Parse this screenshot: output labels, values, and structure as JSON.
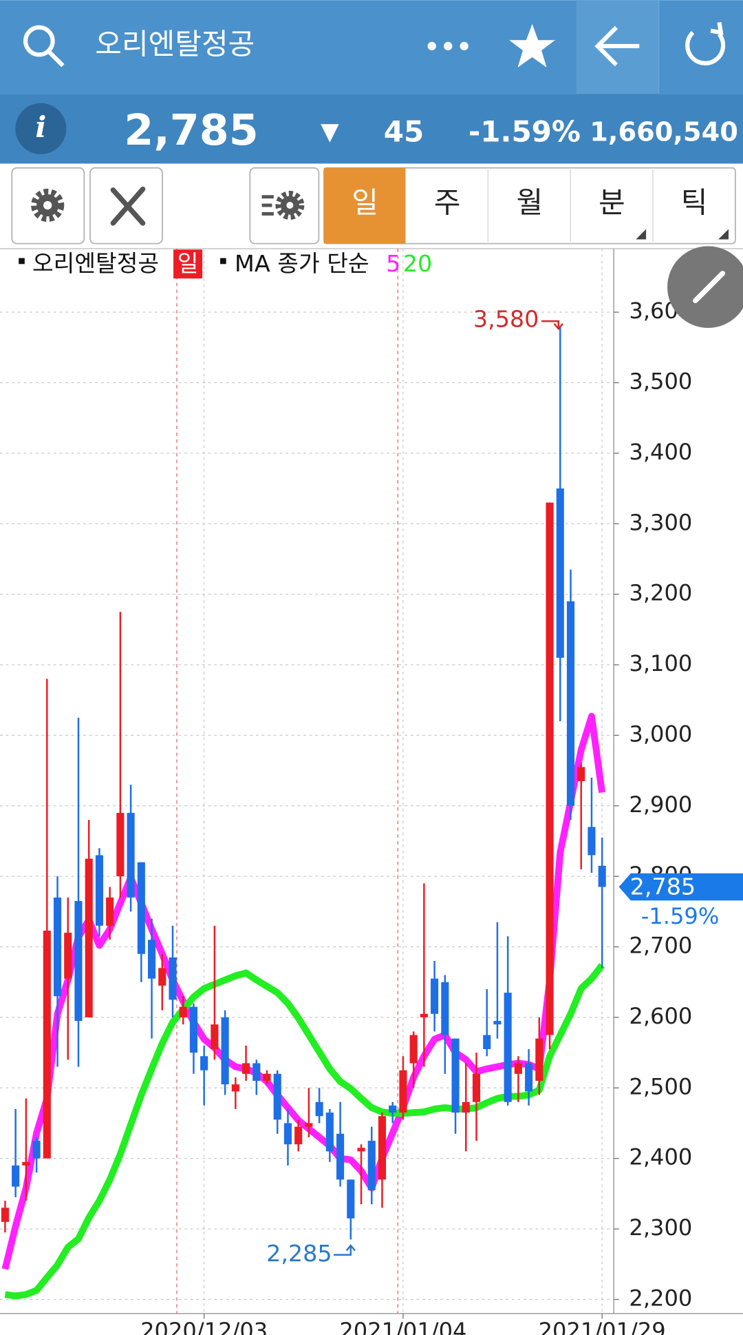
{
  "header": {
    "title": "오리엔탈정공"
  },
  "quote": {
    "info_icon": "i",
    "price": "2,785",
    "direction": "▼",
    "change": "45",
    "change_pct": "-1.59%",
    "volume": "1,660,540"
  },
  "tabs": [
    "일",
    "주",
    "월",
    "분",
    "틱"
  ],
  "chart_data": {
    "type": "candlestick",
    "legend": {
      "name": "오리엔탈정공",
      "period": "일",
      "ma_label": "MA 종가 단순"
    },
    "categories": [
      null,
      null,
      null,
      null,
      null,
      null,
      null,
      null,
      null,
      null,
      null,
      null,
      null,
      null,
      null,
      null,
      null,
      null,
      null,
      "2020/12/03",
      null,
      null,
      null,
      null,
      null,
      null,
      null,
      null,
      null,
      null,
      null,
      null,
      null,
      null,
      null,
      null,
      null,
      null,
      "2021/01/04",
      null,
      null,
      null,
      null,
      null,
      null,
      null,
      null,
      null,
      null,
      null,
      null,
      null,
      null,
      null,
      null,
      null,
      null,
      "2021/01/29"
    ],
    "open": [
      2310,
      2390,
      2390,
      2425,
      2400,
      2770,
      2655,
      2765,
      2600,
      2830,
      2730,
      2800,
      2890,
      2820,
      2710,
      2645,
      2685,
      2600,
      2615,
      2545,
      2555,
      2600,
      2495,
      2520,
      2535,
      2510,
      2520,
      2450,
      2420,
      2445,
      2480,
      2465,
      2435,
      2370,
      2410,
      2425,
      2370,
      2475,
      2465,
      2535,
      2600,
      2655,
      2650,
      2570,
      2465,
      2480,
      2575,
      2595,
      2635,
      2520,
      2535,
      2510,
      2575,
      3350,
      3190,
      2935,
      2870,
      2815
    ],
    "high": [
      2340,
      2470,
      2485,
      2430,
      3080,
      2800,
      2770,
      3025,
      2880,
      2840,
      2785,
      3175,
      2930,
      2820,
      2740,
      2690,
      2730,
      2630,
      2620,
      2560,
      2730,
      2610,
      2515,
      2560,
      2540,
      2525,
      2525,
      2470,
      2455,
      2500,
      2500,
      2470,
      2480,
      2370,
      2420,
      2445,
      2465,
      2480,
      2545,
      2580,
      2790,
      2680,
      2660,
      2570,
      2535,
      2550,
      2640,
      2735,
      2715,
      2545,
      2555,
      2600,
      3330,
      3580,
      3235,
      2960,
      2940,
      2855
    ],
    "low": [
      2295,
      2345,
      2340,
      2380,
      2400,
      2530,
      2540,
      2530,
      2600,
      2715,
      2710,
      2770,
      2750,
      2650,
      2570,
      2610,
      2600,
      2590,
      2520,
      2475,
      2540,
      2490,
      2470,
      2510,
      2490,
      2505,
      2435,
      2390,
      2410,
      2430,
      2450,
      2395,
      2360,
      2285,
      2335,
      2335,
      2330,
      2450,
      2455,
      2500,
      2530,
      2580,
      2520,
      2435,
      2410,
      2425,
      2545,
      2570,
      2475,
      2480,
      2475,
      2490,
      2555,
      3020,
      2880,
      2810,
      2805,
      2670
    ],
    "close": [
      2330,
      2360,
      2395,
      2400,
      2723,
      2630,
      2720,
      2595,
      2825,
      2730,
      2770,
      2890,
      2770,
      2690,
      2655,
      2670,
      2625,
      2615,
      2550,
      2525,
      2590,
      2505,
      2505,
      2535,
      2510,
      2520,
      2455,
      2420,
      2445,
      2450,
      2460,
      2410,
      2370,
      2315,
      2415,
      2355,
      2460,
      2465,
      2525,
      2575,
      2605,
      2605,
      2575,
      2465,
      2480,
      2520,
      2555,
      2590,
      2480,
      2535,
      2495,
      2570,
      3330,
      3110,
      2900,
      2955,
      2830,
      2785
    ],
    "up_color": "#ec1c24",
    "down_color": "#1e6fe6",
    "series": [
      {
        "name": "5",
        "color": "#ff22ff",
        "values": [
          2243,
          2304,
          2358,
          2436,
          2485,
          2605,
          2653,
          2714,
          2738,
          2702,
          2725,
          2762,
          2798,
          2762,
          2725,
          2690,
          2653,
          2623,
          2593,
          2569,
          2557,
          2540,
          2530,
          2527,
          2521,
          2509,
          2490,
          2472,
          2454,
          2442,
          2430,
          2418,
          2400,
          2398,
          2382,
          2358,
          2400,
          2436,
          2472,
          2515,
          2545,
          2569,
          2575,
          2550,
          2540,
          2523,
          2527,
          2530,
          2533,
          2535,
          2533,
          2527,
          2653,
          2834,
          2906,
          2979,
          3027,
          2919
        ]
      },
      {
        "name": "20",
        "color": "#22ee22",
        "values": [
          2207,
          2205,
          2207,
          2213,
          2231,
          2249,
          2274,
          2286,
          2316,
          2340,
          2370,
          2406,
          2448,
          2490,
          2527,
          2563,
          2593,
          2611,
          2629,
          2641,
          2647,
          2653,
          2659,
          2663,
          2653,
          2644,
          2635,
          2620,
          2599,
          2575,
          2551,
          2527,
          2509,
          2499,
          2485,
          2472,
          2466,
          2464,
          2464,
          2465,
          2466,
          2470,
          2472,
          2470,
          2470,
          2472,
          2479,
          2485,
          2488,
          2488,
          2490,
          2497,
          2545,
          2575,
          2605,
          2641,
          2655,
          2674
        ]
      }
    ],
    "ylim": [
      2180,
      3690
    ],
    "yticks": [
      {
        "value": 2200,
        "label": "2,200"
      },
      {
        "value": 2300,
        "label": "2,300"
      },
      {
        "value": 2400,
        "label": "2,400"
      },
      {
        "value": 2500,
        "label": "2,500"
      },
      {
        "value": 2600,
        "label": "2,600"
      },
      {
        "value": 2700,
        "label": "2,700"
      },
      {
        "value": 2800,
        "label": "2,800"
      },
      {
        "value": 2900,
        "label": "2,900"
      },
      {
        "value": 3000,
        "label": "3,000"
      },
      {
        "value": 3100,
        "label": "3,100"
      },
      {
        "value": 3200,
        "label": "3,200"
      },
      {
        "value": 3300,
        "label": "3,300"
      },
      {
        "value": 3400,
        "label": "3,400"
      },
      {
        "value": 3500,
        "label": "3,500"
      },
      {
        "value": 3600,
        "label": "3,600"
      }
    ],
    "grid": true,
    "annotations": {
      "high": {
        "text": "3,580",
        "color": "#d42a2a"
      },
      "low": {
        "text": "2,285",
        "color": "#2a78c8"
      },
      "last_price": {
        "text": "2,785",
        "color": "#1a7ae8"
      },
      "last_change": {
        "text": "-1.59%",
        "color": "#1a7ae8"
      }
    }
  }
}
